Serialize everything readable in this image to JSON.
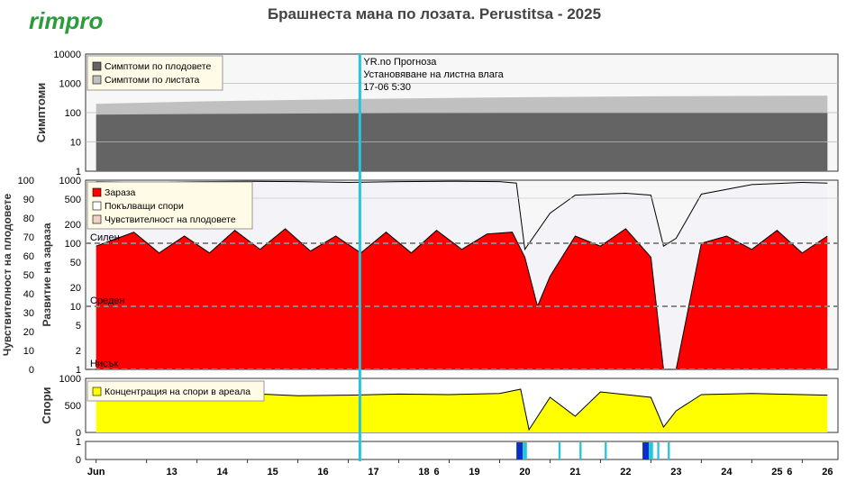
{
  "brand": {
    "logo_text": "rimpro",
    "logo_color": "#2a9d3a"
  },
  "header": {
    "title": "Брашнеста мана по лозата.  Perustitsa - 2025"
  },
  "forecast_note": {
    "lines": [
      "YR.no Прогноза",
      "Установяване на листна влага",
      "17-06 5:30"
    ],
    "marker_color": "#26c6da"
  },
  "colors": {
    "fruit_symptoms": "#646464",
    "leaf_symptoms": "#c0c0c0",
    "infection": "#ff0000",
    "spores_fill": "#f3f3f8",
    "spore_concentration": "#ffff00",
    "wetness_dark": "#0a2fc8",
    "wetness_light": "#26c6da"
  },
  "chart_data": [
    {
      "panel": "symptoms",
      "type": "area",
      "ylabel": "Симптоми",
      "yscale": "log",
      "ylim": [
        1,
        10000
      ],
      "y_ticks": [
        "1",
        "10",
        "100",
        "1000",
        "10000"
      ],
      "legend_position": "top-left",
      "series": [
        {
          "name": "Симптоми по плодовете",
          "x": [
            "12-06 00:00",
            "14-06 00:00",
            "17-06 00:00",
            "20-06 00:00",
            "23-06 00:00",
            "26-06 12:00"
          ],
          "values": [
            85,
            90,
            95,
            100,
            100,
            100
          ]
        },
        {
          "name": "Симптоми по листата",
          "x": [
            "12-06 00:00",
            "14-06 00:00",
            "17-06 00:00",
            "20-06 00:00",
            "23-06 00:00",
            "26-06 12:00"
          ],
          "values": [
            200,
            240,
            290,
            330,
            360,
            380
          ]
        }
      ]
    },
    {
      "panel": "infection",
      "type": "area",
      "ylabel_left": "Чувствителност на плодовете",
      "ylabel_right": "Развитие на зараза",
      "yscale": "log",
      "ylim": [
        1,
        1000
      ],
      "y_ticks_outer": [
        "0",
        "10",
        "20",
        "30",
        "40",
        "50",
        "60",
        "70",
        "80",
        "90",
        "100"
      ],
      "y_ticks_inner": [
        "1",
        "2",
        "5",
        "10",
        "20",
        "50",
        "100",
        "200",
        "500",
        "1000"
      ],
      "risk_levels": [
        {
          "label": "Силен",
          "value": 100
        },
        {
          "label": "Среден",
          "value": 10
        },
        {
          "label": "Нисък",
          "value": 1
        }
      ],
      "legend_position": "top-left",
      "series": [
        {
          "name": "Зараза",
          "x": [
            "12-06 00:00",
            "12-06 18:00",
            "13-06 06:00",
            "13-06 18:00",
            "14-06 06:00",
            "14-06 18:00",
            "15-06 06:00",
            "15-06 18:00",
            "16-06 06:00",
            "16-06 18:00",
            "17-06 06:00",
            "17-06 18:00",
            "18-06 06:00",
            "18-06 18:00",
            "19-06 06:00",
            "19-06 18:00",
            "20-06 06:00",
            "20-06 12:00",
            "20-06 18:00",
            "21-06 00:00",
            "21-06 12:00",
            "22-06 00:00",
            "22-06 12:00",
            "23-06 00:00",
            "23-06 06:00",
            "23-06 12:00",
            "24-06 00:00",
            "24-06 12:00",
            "25-06 00:00",
            "25-06 12:00",
            "26-06 00:00",
            "26-06 12:00"
          ],
          "values": [
            90,
            150,
            70,
            130,
            70,
            160,
            80,
            170,
            75,
            130,
            70,
            150,
            70,
            160,
            80,
            140,
            150,
            60,
            10,
            30,
            130,
            90,
            170,
            60,
            1,
            1,
            100,
            130,
            80,
            160,
            70,
            130
          ]
        },
        {
          "name": "Покълващи спори",
          "x": [
            "12-06 00:00",
            "13-06 00:00",
            "14-06 00:00",
            "15-06 00:00",
            "16-06 00:00",
            "17-06 00:00",
            "18-06 00:00",
            "19-06 00:00",
            "20-06 00:00",
            "20-06 08:00",
            "20-06 12:00",
            "21-06 00:00",
            "21-06 12:00",
            "22-06 00:00",
            "22-06 12:00",
            "23-06 00:00",
            "23-06 06:00",
            "23-06 12:00",
            "24-06 00:00",
            "25-06 00:00",
            "26-06 00:00",
            "26-06 12:00"
          ],
          "values": [
            950,
            930,
            950,
            960,
            950,
            920,
            950,
            960,
            950,
            900,
            80,
            300,
            580,
            600,
            620,
            580,
            90,
            120,
            600,
            850,
            920,
            900
          ]
        },
        {
          "name": "Чувствителност на плодовете",
          "x": [],
          "values": []
        }
      ]
    },
    {
      "panel": "spores",
      "type": "area",
      "ylabel": "Спори",
      "ylim": [
        0,
        1000
      ],
      "y_ticks": [
        "0",
        "500",
        "1000"
      ],
      "legend_position": "top-left",
      "series": [
        {
          "name": "Концентрация на спори в ареала",
          "x": [
            "12-06 00:00",
            "13-06 00:00",
            "14-06 00:00",
            "15-06 00:00",
            "16-06 00:00",
            "17-06 00:00",
            "18-06 00:00",
            "19-06 00:00",
            "20-06 00:00",
            "20-06 10:00",
            "20-06 14:00",
            "21-06 00:00",
            "21-06 12:00",
            "22-06 00:00",
            "22-06 12:00",
            "23-06 00:00",
            "23-06 06:00",
            "23-06 12:00",
            "24-06 00:00",
            "25-06 00:00",
            "26-06 00:00",
            "26-06 12:00"
          ],
          "values": [
            700,
            650,
            700,
            720,
            680,
            690,
            710,
            700,
            720,
            800,
            50,
            650,
            300,
            750,
            700,
            650,
            100,
            400,
            700,
            720,
            700,
            690
          ]
        }
      ]
    },
    {
      "panel": "wetness",
      "type": "bar",
      "ylim": [
        0,
        1
      ],
      "y_ticks": [
        "0",
        "1"
      ],
      "events": [
        {
          "start": "20-06 08:00",
          "end": "20-06 11:00",
          "level": "dark"
        },
        {
          "start": "20-06 11:00",
          "end": "20-06 13:00",
          "level": "light"
        },
        {
          "start": "21-06 04:00",
          "end": "21-06 05:00",
          "level": "light"
        },
        {
          "start": "21-06 14:00",
          "end": "21-06 15:00",
          "level": "light"
        },
        {
          "start": "22-06 02:00",
          "end": "22-06 03:00",
          "level": "light"
        },
        {
          "start": "22-06 20:00",
          "end": "22-06 23:00",
          "level": "dark"
        },
        {
          "start": "22-06 23:00",
          "end": "23-06 01:00",
          "level": "light"
        },
        {
          "start": "23-06 03:00",
          "end": "23-06 04:00",
          "level": "light"
        },
        {
          "start": "23-06 08:00",
          "end": "23-06 09:00",
          "level": "light"
        }
      ]
    }
  ],
  "x_axis": {
    "labels": [
      {
        "text": "Jun",
        "date": "12-06 00:00"
      },
      {
        "text": "13",
        "date": "13-06 12:00"
      },
      {
        "text": "14",
        "date": "14-06 12:00"
      },
      {
        "text": "15",
        "date": "15-06 12:00"
      },
      {
        "text": "16",
        "date": "16-06 12:00"
      },
      {
        "text": "17",
        "date": "17-06 12:00"
      },
      {
        "text": "18",
        "date": "18-06 12:00"
      },
      {
        "text": "6",
        "date": "18-06 18:00"
      },
      {
        "text": "19",
        "date": "19-06 12:00"
      },
      {
        "text": "20",
        "date": "20-06 12:00"
      },
      {
        "text": "21",
        "date": "21-06 12:00"
      },
      {
        "text": "22",
        "date": "22-06 12:00"
      },
      {
        "text": "23",
        "date": "23-06 12:00"
      },
      {
        "text": "24",
        "date": "24-06 12:00"
      },
      {
        "text": "25",
        "date": "25-06 12:00"
      },
      {
        "text": "6",
        "date": "25-06 18:00"
      },
      {
        "text": "26",
        "date": "26-06 12:00"
      }
    ],
    "range": [
      "11-06 19:00",
      "26-06 17:00"
    ],
    "forecast_marker": "17-06 05:30"
  }
}
